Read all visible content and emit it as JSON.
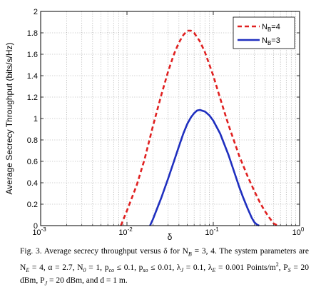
{
  "chart_data": {
    "type": "line",
    "title": "",
    "xlabel": "δ",
    "ylabel": "Average Secrecy Throughput (bits/s/Hz)",
    "xscale": "log",
    "xlim": [
      0.001,
      1
    ],
    "ylim": [
      0,
      2
    ],
    "grid": true,
    "legend_position": "top-right",
    "x_ticks": [
      0.001,
      0.01,
      0.1,
      1
    ],
    "x_tick_labels": [
      {
        "base": "10",
        "exp": "-3"
      },
      {
        "base": "10",
        "exp": "-2"
      },
      {
        "base": "10",
        "exp": "-1"
      },
      {
        "base": "10",
        "exp": "0"
      }
    ],
    "y_ticks": [
      0,
      0.2,
      0.4,
      0.6,
      0.8,
      1,
      1.2,
      1.4,
      1.6,
      1.8,
      2
    ],
    "y_tick_labels": [
      "0",
      "0.2",
      "0.4",
      "0.6",
      "0.8",
      "1",
      "1.2",
      "1.4",
      "1.6",
      "1.8",
      "2"
    ],
    "series": [
      {
        "name": "N_B=4",
        "label_main": "N",
        "label_sub": "B",
        "label_rest": "=4",
        "color": "#e02020",
        "dash": "dashed",
        "x": [
          0.0085,
          0.01,
          0.013,
          0.016,
          0.02,
          0.025,
          0.03,
          0.035,
          0.04,
          0.045,
          0.05,
          0.055,
          0.06,
          0.07,
          0.08,
          0.1,
          0.12,
          0.15,
          0.2,
          0.25,
          0.3,
          0.35,
          0.4,
          0.45,
          0.5,
          0.56
        ],
        "y": [
          0.0,
          0.14,
          0.38,
          0.62,
          0.93,
          1.22,
          1.44,
          1.6,
          1.71,
          1.78,
          1.82,
          1.82,
          1.8,
          1.72,
          1.62,
          1.4,
          1.19,
          0.94,
          0.65,
          0.46,
          0.32,
          0.21,
          0.13,
          0.07,
          0.02,
          0.0
        ]
      },
      {
        "name": "N_B=3",
        "label_main": "N",
        "label_sub": "B",
        "label_rest": "=3",
        "color": "#1f2fbf",
        "dash": "solid",
        "x": [
          0.0185,
          0.02,
          0.025,
          0.03,
          0.035,
          0.04,
          0.045,
          0.05,
          0.055,
          0.06,
          0.065,
          0.07,
          0.08,
          0.09,
          0.1,
          0.12,
          0.15,
          0.18,
          0.2,
          0.22,
          0.25,
          0.28,
          0.3,
          0.32,
          0.34
        ],
        "y": [
          0.0,
          0.06,
          0.26,
          0.44,
          0.6,
          0.74,
          0.86,
          0.95,
          1.01,
          1.05,
          1.075,
          1.08,
          1.065,
          1.03,
          0.98,
          0.86,
          0.66,
          0.47,
          0.36,
          0.27,
          0.16,
          0.07,
          0.03,
          0.01,
          0.0
        ]
      }
    ]
  },
  "caption": {
    "lines": [
      "Fig. 3.   Average secrecy throughput versus δ for N",
      "B",
      " = 3, 4. The system parameters are N",
      "E",
      " = 4, α = 2.7, N",
      "0",
      " = 1, p",
      "co",
      " ≤ 0.1, p",
      "so",
      " ≤ 0.01, λ",
      "J",
      " = 0.1, λ",
      "E",
      " = 0.001 Points/m",
      "2",
      ", P",
      "S",
      " = 20 dBm, P",
      "J",
      " = 20 dBm, and d = 1 m."
    ]
  }
}
